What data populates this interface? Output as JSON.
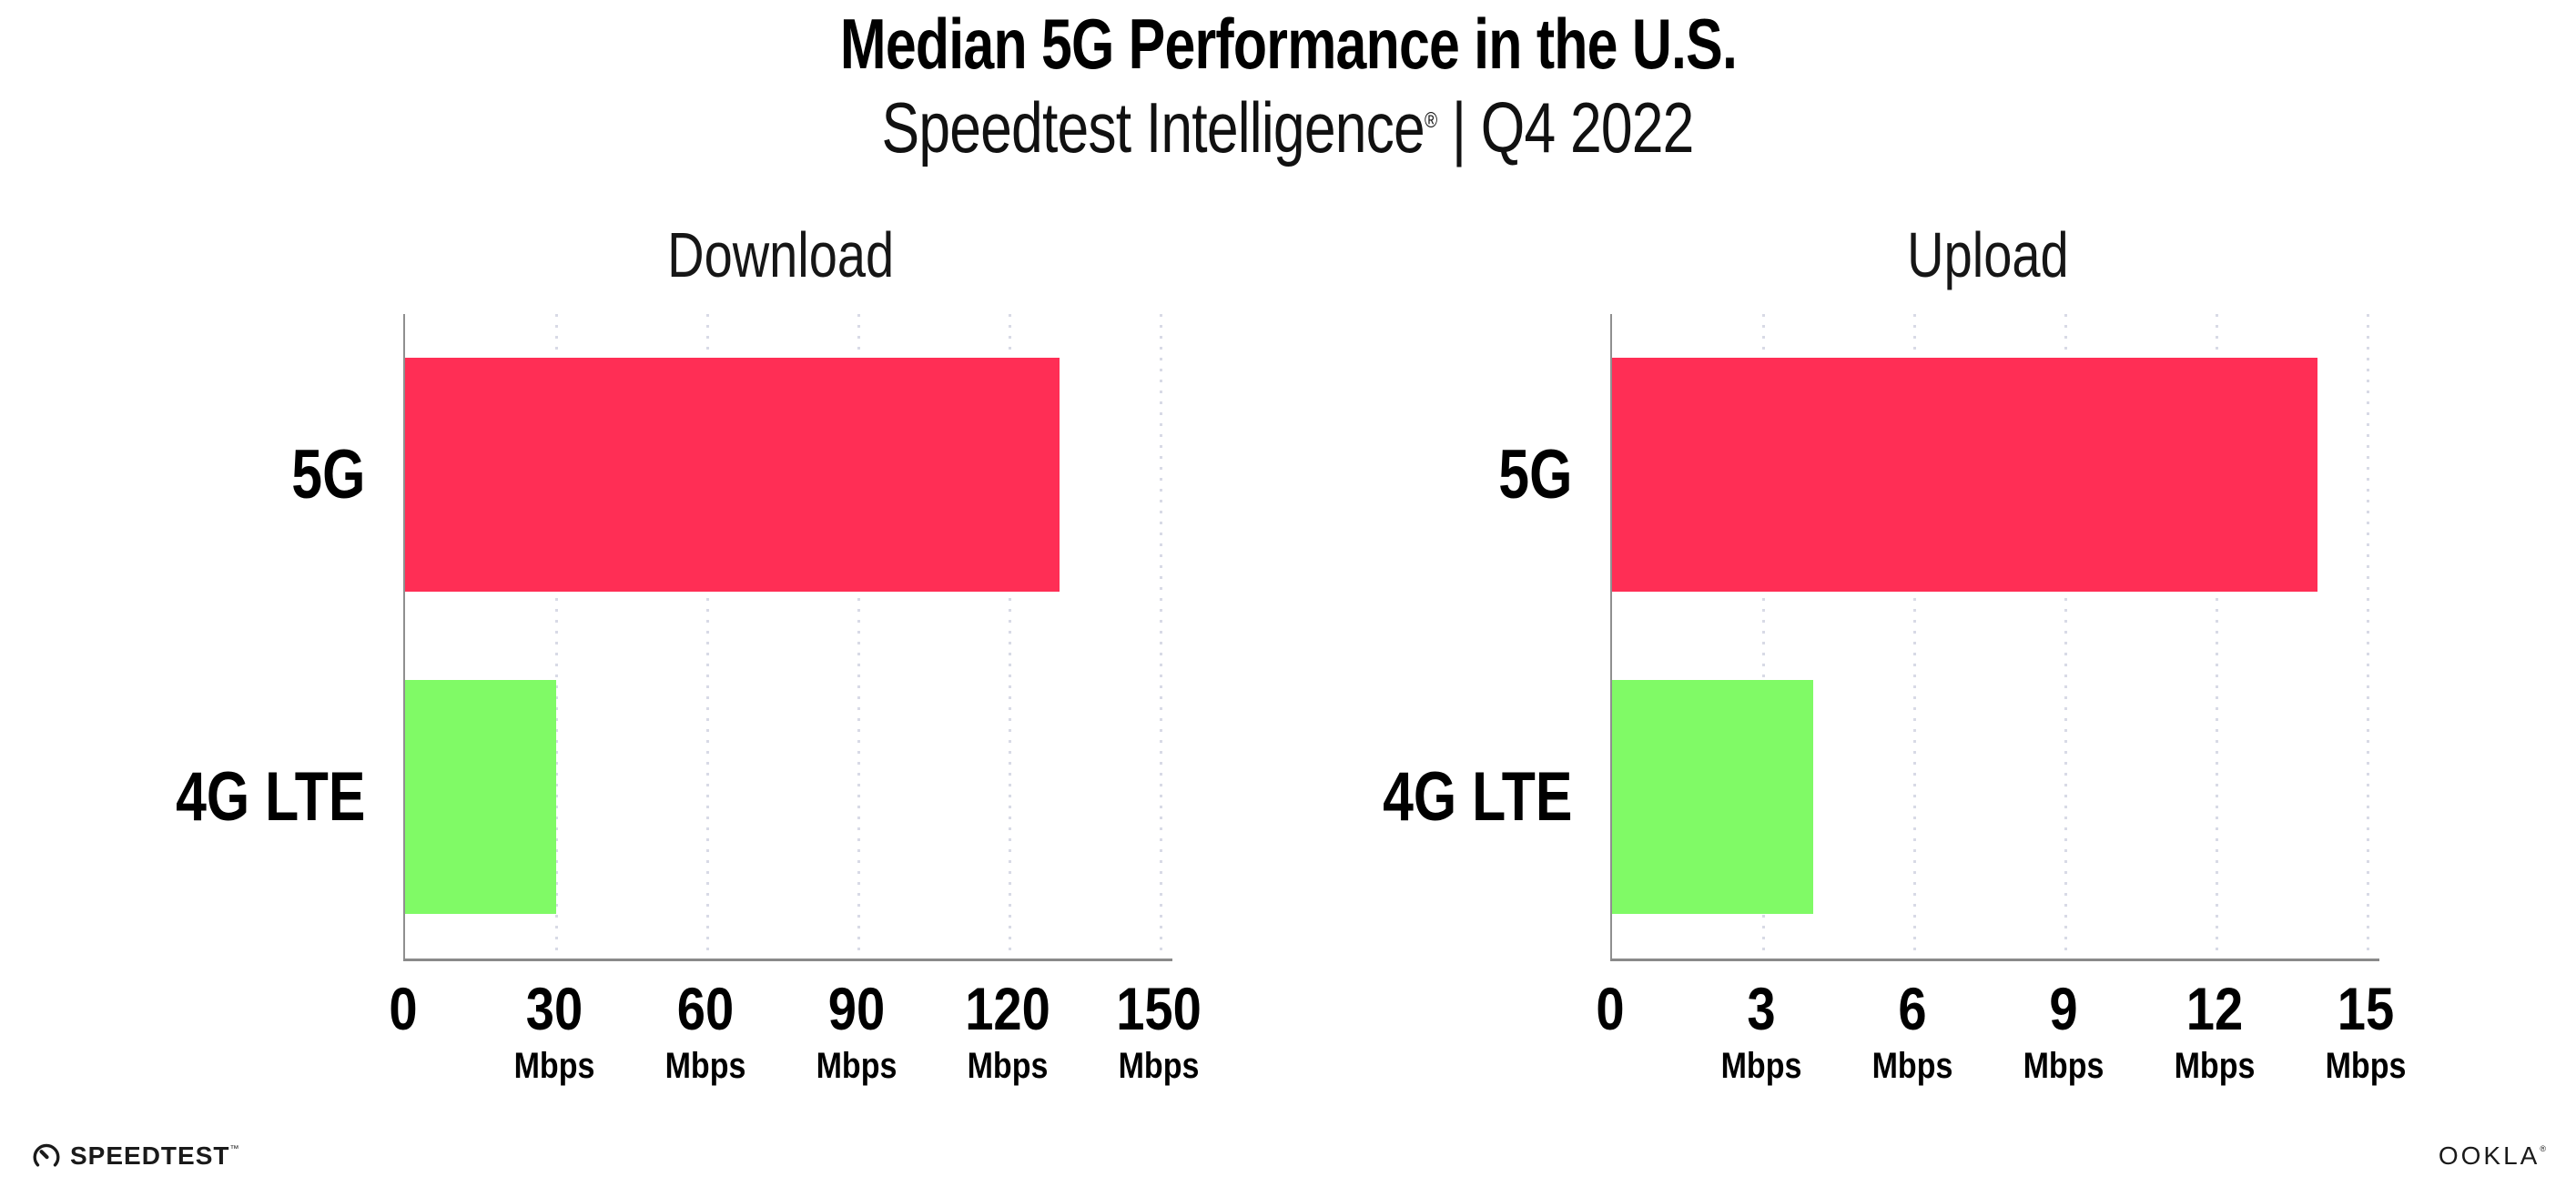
{
  "header": {
    "title": "Median 5G Performance in the U.S.",
    "subtitle_brand": "Speedtest Intelligence",
    "subtitle_reg": "®",
    "subtitle_rest": " | Q4 2022"
  },
  "footer": {
    "speedtest_wordmark": "SPEEDTEST",
    "speedtest_tm": "™",
    "ookla_wordmark": "OOKLA",
    "ookla_reg": "®"
  },
  "colors": {
    "bar_5g": "#FF2E55",
    "bar_4g_lte": "#80FA66",
    "gridline": "#D8DAE6",
    "axis_line": "#8A8A8A",
    "text": "#000000"
  },
  "chart_data": [
    {
      "type": "bar",
      "orientation": "horizontal",
      "title": "Download",
      "categories": [
        "5G",
        "4G LTE"
      ],
      "values": [
        130,
        30
      ],
      "unit": "Mbps",
      "series_colors": [
        "#FF2E55",
        "#80FA66"
      ],
      "xlim": [
        0,
        150
      ],
      "xticks": [
        0,
        30,
        60,
        90,
        120,
        150
      ],
      "tick_unit_label": "Mbps",
      "grid": "vertical-dotted",
      "legend": "none"
    },
    {
      "type": "bar",
      "orientation": "horizontal",
      "title": "Upload",
      "categories": [
        "5G",
        "4G LTE"
      ],
      "values": [
        14,
        4
      ],
      "unit": "Mbps",
      "series_colors": [
        "#FF2E55",
        "#80FA66"
      ],
      "xlim": [
        0,
        15
      ],
      "xticks": [
        0,
        3,
        6,
        9,
        12,
        15
      ],
      "tick_unit_label": "Mbps",
      "grid": "vertical-dotted",
      "legend": "none"
    }
  ]
}
